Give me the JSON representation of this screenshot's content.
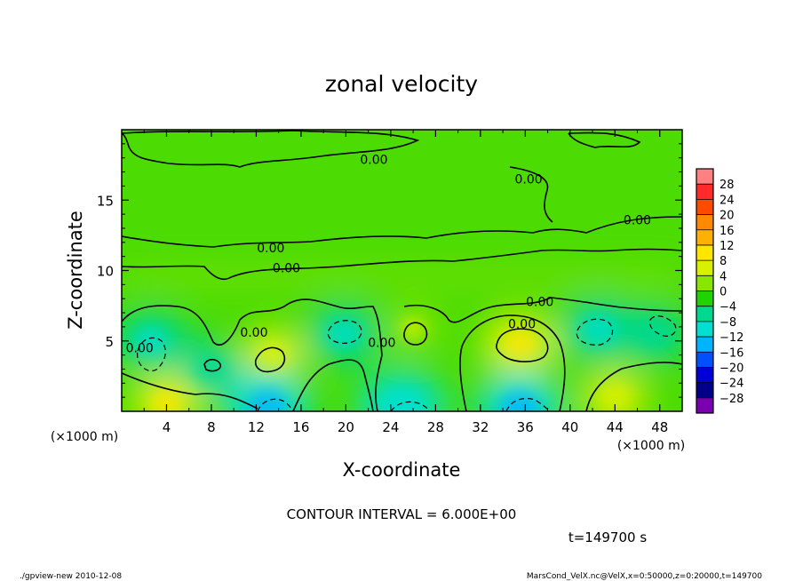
{
  "chart_data": {
    "type": "heatmap",
    "title": "zonal velocity",
    "xlabel": "X-coordinate",
    "ylabel": "Z-coordinate",
    "x_unit_label": "(×1000 m)",
    "y_unit_label": "(×1000 m)",
    "xlim": [
      0,
      50
    ],
    "ylim": [
      0,
      20
    ],
    "x_ticks": [
      4,
      8,
      12,
      16,
      20,
      24,
      28,
      32,
      36,
      40,
      44,
      48
    ],
    "y_ticks": [
      5,
      10,
      15
    ],
    "contour_interval_text": "CONTOUR INTERVAL = 6.000E+00",
    "contour_labels": [
      {
        "text": "0.00",
        "x": 22.5,
        "y": 17.9
      },
      {
        "text": "0.00",
        "x": 36.3,
        "y": 16.5
      },
      {
        "text": "0.00",
        "x": 46.0,
        "y": 13.6
      },
      {
        "text": "0.00",
        "x": 13.3,
        "y": 11.6
      },
      {
        "text": "0.00",
        "x": 14.7,
        "y": 10.2
      },
      {
        "text": "0.00",
        "x": 37.3,
        "y": 7.8
      },
      {
        "text": "0.00",
        "x": 35.7,
        "y": 6.2
      },
      {
        "text": "0.00",
        "x": 11.8,
        "y": 5.6
      },
      {
        "text": "0.00",
        "x": 23.2,
        "y": 4.9
      },
      {
        "text": "0.00",
        "x": 1.6,
        "y": 4.5
      }
    ],
    "features": [
      {
        "kind": "max",
        "x": 35.5,
        "y": 4.8,
        "value": 7
      },
      {
        "kind": "max",
        "x": 13.5,
        "y": 4.0,
        "value": 5
      },
      {
        "kind": "max",
        "x": 26.0,
        "y": 5.9,
        "value": 3
      },
      {
        "kind": "min",
        "x": 19.8,
        "y": 5.5,
        "value": -7
      },
      {
        "kind": "min",
        "x": 42.6,
        "y": 5.8,
        "value": -8
      },
      {
        "kind": "min",
        "x": 2.6,
        "y": 5.0,
        "value": -7
      },
      {
        "kind": "min",
        "x": 7.8,
        "y": 3.0,
        "value": -6
      },
      {
        "kind": "min",
        "x": 13.0,
        "y": 0.4,
        "value": -12
      },
      {
        "kind": "min",
        "x": 25.0,
        "y": 0.3,
        "value": -10
      },
      {
        "kind": "min",
        "x": 35.5,
        "y": 0.3,
        "value": -12
      },
      {
        "kind": "min",
        "x": 47.5,
        "y": 5.5,
        "value": -6
      },
      {
        "kind": "max",
        "x": 4.0,
        "y": 0.6,
        "value": 6
      },
      {
        "kind": "max",
        "x": 44.0,
        "y": 1.0,
        "value": 5
      }
    ],
    "colorbar": {
      "levels": [
        28,
        24,
        20,
        16,
        12,
        8,
        4,
        0,
        -4,
        -8,
        -12,
        -16,
        -20,
        -24,
        -28
      ],
      "level_labels": [
        "28",
        "24",
        "20",
        "16",
        "12",
        "8",
        "4",
        "0",
        "−4",
        "−8",
        "−12",
        "−16",
        "−20",
        "−24",
        "−28"
      ],
      "colors": [
        "#ff8080",
        "#ff2a2a",
        "#ff4a00",
        "#ff8a00",
        "#ffb000",
        "#ffe600",
        "#d8f000",
        "#88e600",
        "#20d400",
        "#00d890",
        "#00e0d0",
        "#00b4ff",
        "#0050ff",
        "#0000d8",
        "#00008a",
        "#7a00b0"
      ]
    },
    "time_text": "t=149700 s"
  },
  "footer": {
    "left": "./gpview-new  2010-12-08",
    "right": "MarsCond_VelX.nc@VelX,x=0:50000,z=0:20000,t=149700"
  }
}
